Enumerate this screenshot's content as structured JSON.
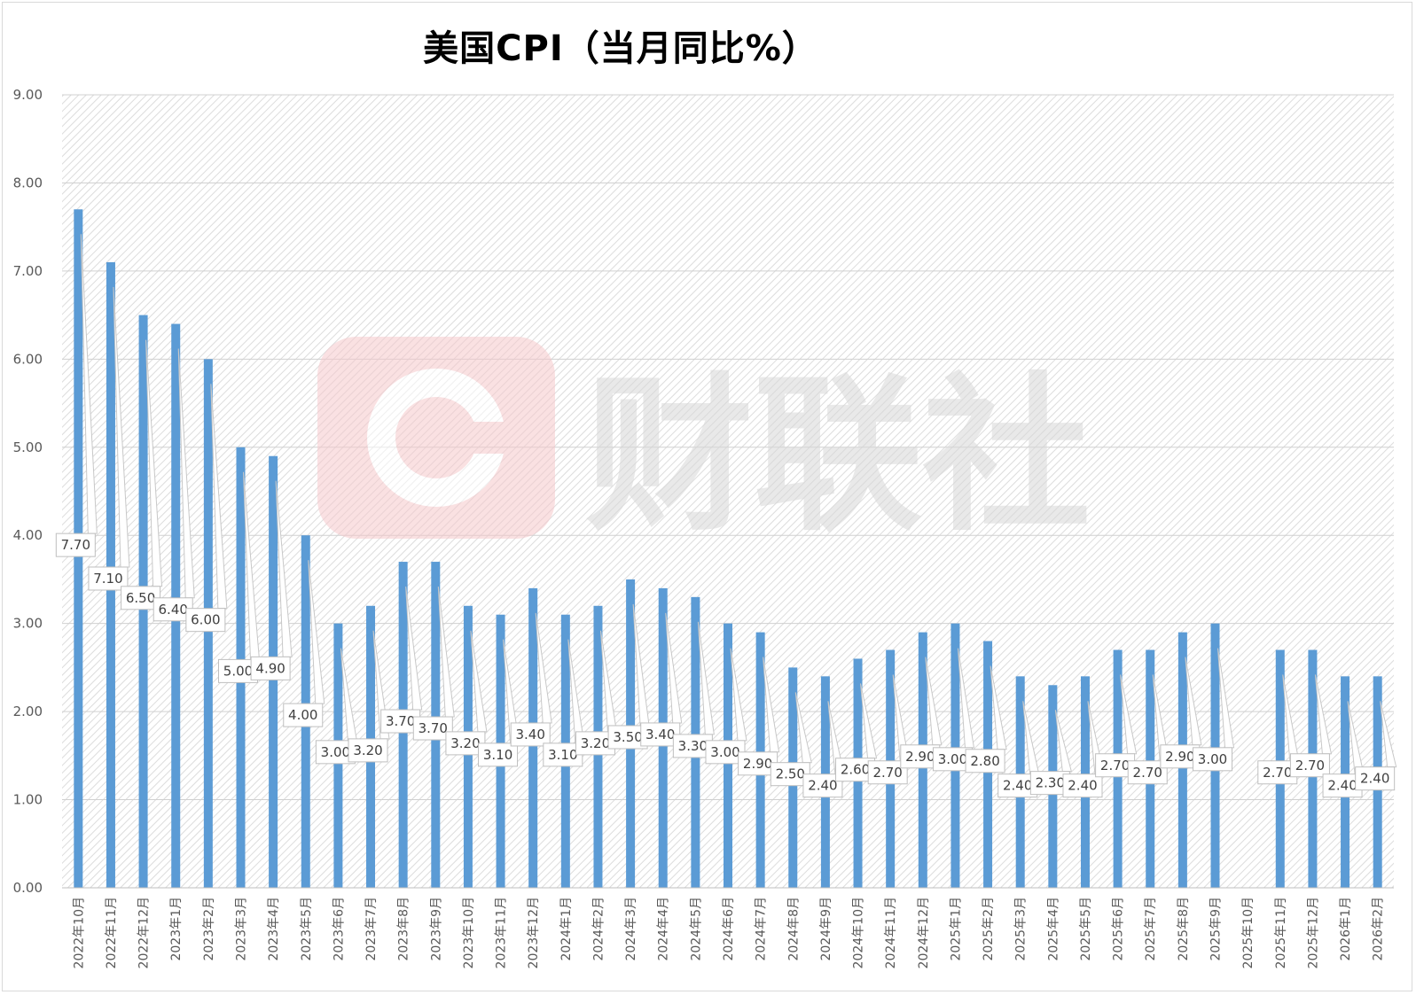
{
  "chart_data": {
    "type": "bar",
    "title": "美国CPI（当月同比%）",
    "categories": [
      "2022年10月",
      "2022年11月",
      "2022年12月",
      "2023年1月",
      "2023年2月",
      "2023年3月",
      "2023年4月",
      "2023年5月",
      "2023年6月",
      "2023年7月",
      "2023年8月",
      "2023年9月",
      "2023年10月",
      "2023年11月",
      "2023年12月",
      "2024年1月",
      "2024年2月",
      "2024年3月",
      "2024年4月",
      "2024年5月",
      "2024年6月",
      "2024年7月",
      "2024年8月",
      "2024年9月",
      "2024年10月",
      "2024年11月",
      "2024年12月",
      "2025年1月",
      "2025年2月",
      "2025年3月",
      "2025年4月",
      "2025年5月",
      "2025年6月",
      "2025年7月",
      "2025年8月",
      "2025年9月",
      "2025年10月",
      "2025年11月",
      "2025年12月",
      "2026年1月",
      "2026年2月"
    ],
    "values": [
      7.7,
      7.1,
      6.5,
      6.4,
      6.0,
      5.0,
      4.9,
      4.0,
      3.0,
      3.2,
      3.7,
      3.7,
      3.2,
      3.1,
      3.4,
      3.1,
      3.2,
      3.5,
      3.4,
      3.3,
      3.0,
      2.9,
      2.5,
      2.4,
      2.6,
      2.7,
      2.9,
      3.0,
      2.8,
      2.4,
      2.3,
      2.4,
      2.7,
      2.7,
      2.9,
      3.0,
      null,
      2.7,
      2.7,
      2.4,
      2.4
    ],
    "data_labels": [
      "7.70",
      "7.10",
      "6.50",
      "6.40",
      "6.00",
      "5.00",
      "4.90",
      "4.00",
      "3.00",
      "3.20",
      "3.70",
      "3.70",
      "3.20",
      "3.10",
      "3.40",
      "3.10",
      "3.20",
      "3.50",
      "3.40",
      "3.30",
      "3.00",
      "2.90",
      "2.50",
      "2.40",
      "2.60",
      "2.70",
      "2.90",
      "3.00",
      "2.80",
      "2.40",
      "2.30",
      "2.40",
      "2.70",
      "2.70",
      "2.90",
      "3.00",
      "",
      "2.70",
      "2.70",
      "2.40",
      "2.40"
    ],
    "y_ticks": [
      "0.00",
      "1.00",
      "2.00",
      "3.00",
      "4.00",
      "5.00",
      "6.00",
      "7.00",
      "8.00",
      "9.00"
    ],
    "ylim": [
      0,
      9
    ],
    "grid": true,
    "bar_color": "#5b9bd5",
    "watermark": "财联社"
  }
}
